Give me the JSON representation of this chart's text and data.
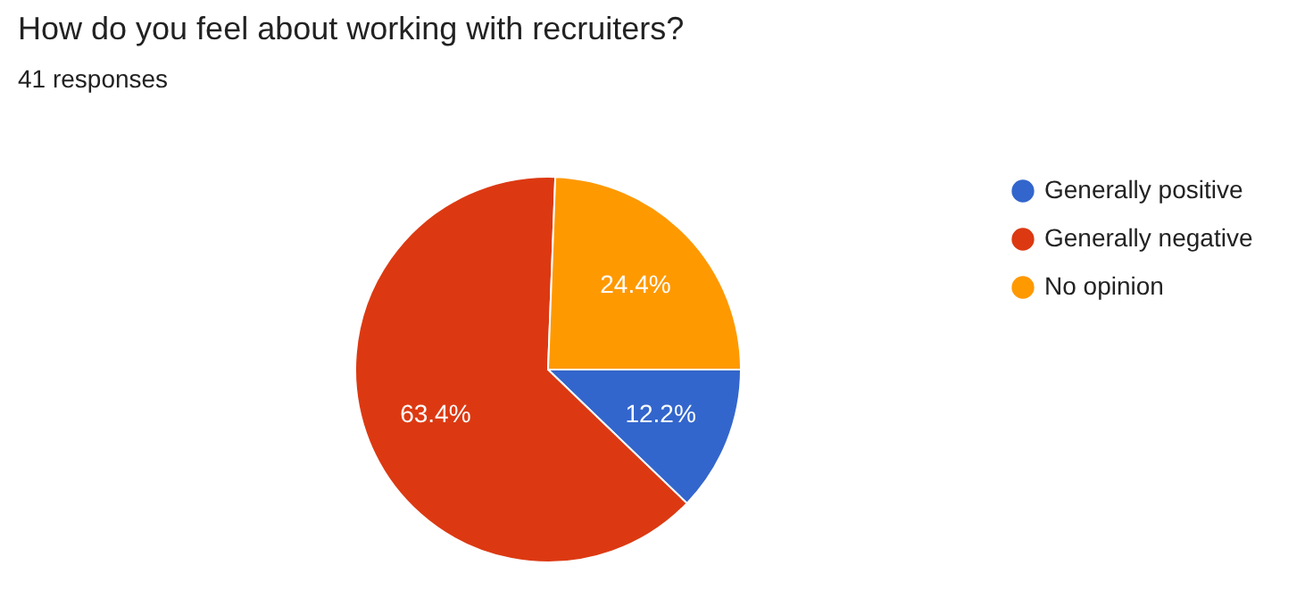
{
  "chart_data": {
    "type": "pie",
    "title": "How do you feel about working with recruiters?",
    "subtitle": "41 responses",
    "categories": [
      "Generally positive",
      "Generally negative",
      "No opinion"
    ],
    "values": [
      12.2,
      63.4,
      24.4
    ],
    "colors": [
      "#3366cc",
      "#dc3912",
      "#ff9900"
    ],
    "value_labels": [
      "12.2%",
      "63.4%",
      "24.4%"
    ],
    "legend": "right"
  }
}
